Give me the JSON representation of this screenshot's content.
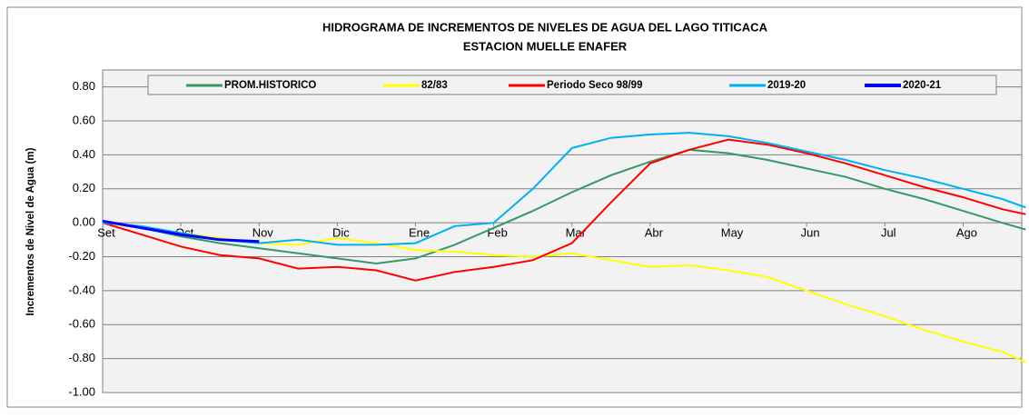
{
  "chart_data": {
    "type": "line",
    "title": "HIDROGRAMA DE INCREMENTOS DE NIVELES DE AGUA DEL  LAGO TITICACA",
    "subtitle": "ESTACION MUELLE ENAFER",
    "y_label": "Incrementos de Nivel de Agua (m)",
    "x": [
      0,
      0.5,
      1,
      1.5,
      2,
      2.5,
      3,
      3.5,
      4,
      4.5,
      5,
      5.5,
      6,
      6.5,
      7,
      7.5,
      8,
      8.5,
      9,
      9.5,
      10,
      10.5,
      11,
      11.5,
      11.8
    ],
    "xlim": [
      0,
      11.75
    ],
    "xticks": [
      {
        "value": 0,
        "label": "Set"
      },
      {
        "value": 1,
        "label": "Oct"
      },
      {
        "value": 2,
        "label": "Nov"
      },
      {
        "value": 3,
        "label": "Dic"
      },
      {
        "value": 4,
        "label": "Ene"
      },
      {
        "value": 5,
        "label": "Feb"
      },
      {
        "value": 6,
        "label": "Mar"
      },
      {
        "value": 7,
        "label": "Abr"
      },
      {
        "value": 8,
        "label": "May"
      },
      {
        "value": 9,
        "label": "Jun"
      },
      {
        "value": 10,
        "label": "Jul"
      },
      {
        "value": 11,
        "label": "Ago"
      }
    ],
    "ylim": [
      -1.0,
      0.9
    ],
    "yticks": [
      {
        "value": 0.8,
        "label": "0.80"
      },
      {
        "value": 0.6,
        "label": "0.60"
      },
      {
        "value": 0.4,
        "label": "0.40"
      },
      {
        "value": 0.2,
        "label": "0.20"
      },
      {
        "value": 0,
        "label": "0.00"
      },
      {
        "value": -0.2,
        "label": "-0.20"
      },
      {
        "value": -0.4,
        "label": "-0.40"
      },
      {
        "value": -0.6,
        "label": "-0.60"
      },
      {
        "value": -0.8,
        "label": "-0.80"
      },
      {
        "value": -1.0,
        "label": "-1.00"
      }
    ],
    "grid": true,
    "legend": "top",
    "series": [
      {
        "name": "PROM.HISTORICO",
        "color": "#339966",
        "values": [
          0,
          -0.03,
          -0.08,
          -0.12,
          -0.15,
          -0.18,
          -0.21,
          -0.24,
          -0.21,
          -0.13,
          -0.03,
          0.07,
          0.18,
          0.28,
          0.36,
          0.43,
          0.41,
          0.37,
          0.32,
          0.27,
          0.2,
          0.14,
          0.07,
          0.0,
          -0.04
        ]
      },
      {
        "name": "82/83",
        "color": "#ffff00",
        "values": [
          0,
          -0.03,
          -0.06,
          -0.09,
          -0.12,
          -0.13,
          -0.09,
          -0.12,
          -0.16,
          -0.17,
          -0.19,
          -0.2,
          -0.18,
          -0.22,
          -0.26,
          -0.25,
          -0.28,
          -0.32,
          -0.4,
          -0.48,
          -0.55,
          -0.63,
          -0.7,
          -0.76,
          -0.82
        ]
      },
      {
        "name": "Periodo Seco 98/99",
        "color": "#ff0000",
        "values": [
          0,
          -0.07,
          -0.14,
          -0.19,
          -0.21,
          -0.27,
          -0.26,
          -0.28,
          -0.34,
          -0.29,
          -0.26,
          -0.22,
          -0.12,
          0.12,
          0.35,
          0.43,
          0.49,
          0.46,
          0.41,
          0.35,
          0.28,
          0.21,
          0.15,
          0.08,
          0.05
        ]
      },
      {
        "name": "2019-20",
        "color": "#00b0f0",
        "values": [
          0,
          -0.02,
          -0.06,
          -0.1,
          -0.12,
          -0.1,
          -0.13,
          -0.13,
          -0.12,
          -0.02,
          0.0,
          0.2,
          0.44,
          0.5,
          0.52,
          0.53,
          0.51,
          0.47,
          0.42,
          0.37,
          0.31,
          0.26,
          0.2,
          0.14,
          0.09
        ]
      },
      {
        "name": "2020-21",
        "color": "#0000ff",
        "values": [
          0.01,
          -0.03,
          -0.07,
          -0.1,
          -0.11,
          null,
          null,
          null,
          null,
          null,
          null,
          null,
          null,
          null,
          null,
          null,
          null,
          null,
          null,
          null,
          null,
          null,
          null,
          null,
          null
        ]
      }
    ]
  }
}
